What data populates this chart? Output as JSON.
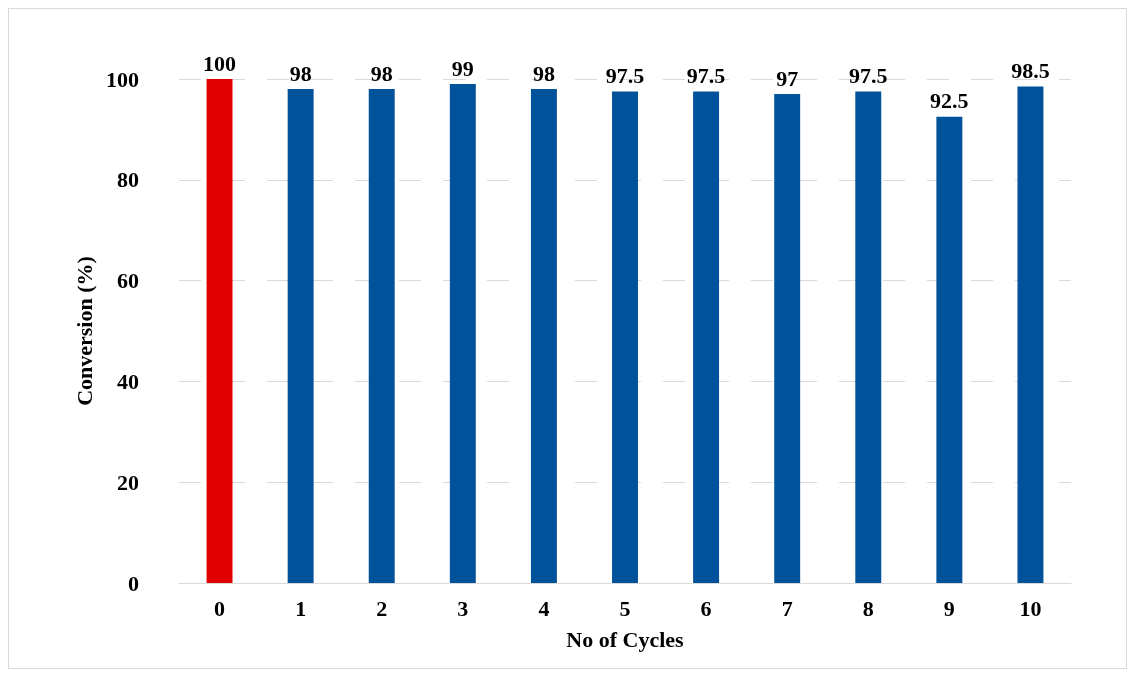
{
  "chart_data": {
    "type": "bar",
    "xlabel": "No of Cycles",
    "ylabel": "Conversion (%)",
    "categories": [
      "0",
      "1",
      "2",
      "3",
      "4",
      "5",
      "6",
      "7",
      "8",
      "9",
      "10"
    ],
    "values": [
      100,
      98,
      98,
      99,
      98,
      97.5,
      97.5,
      97,
      97.5,
      92.5,
      98.5
    ],
    "colors": [
      "#e00000",
      "#00529b",
      "#00529b",
      "#00529b",
      "#00529b",
      "#00529b",
      "#00529b",
      "#00529b",
      "#00529b",
      "#00529b",
      "#00529b"
    ],
    "ylim": [
      0,
      100
    ],
    "yticks": [
      0,
      20,
      40,
      60,
      80,
      100
    ],
    "grid": "y",
    "data_labels": true
  }
}
